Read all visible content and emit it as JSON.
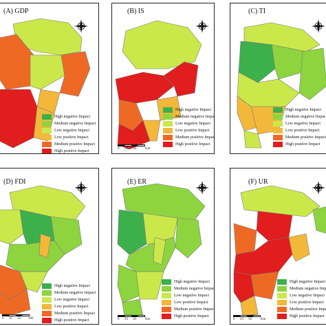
{
  "panels": [
    {
      "title": "(A) GDP",
      "legend": [
        "High negative Impact",
        "Medium negative Impact",
        "Low negative Impact",
        "Low positive Impact",
        "Medium positive Impact",
        "High positive Impact"
      ]
    },
    {
      "title": "(B) IS",
      "legend": [
        "High negative Impact",
        "Medium negative Impact",
        "Low negative Impact",
        "Low positive Impact",
        "Medium positive Impact",
        "High positive Impact"
      ],
      "scale": [
        "0",
        "25",
        "50",
        "Km"
      ]
    },
    {
      "title": "(C) TI",
      "legend": [
        "High negative Impact",
        "Medium negative Impact",
        "Low negative Impact",
        "Low positive Impact",
        "Medium positive Impact",
        "High positive Impact"
      ]
    },
    {
      "title": "(D) FDI",
      "legend": [
        "High negative Impact",
        "Medium negative Impact",
        "Low negative Impact",
        "Low positive Impact",
        "Medium positive Impact",
        "High positive Impact"
      ],
      "scale": [
        "0",
        "25",
        "50",
        "100"
      ]
    },
    {
      "title": "(E) ER",
      "legend": [
        "High negative Impact",
        "Medium negative Impact",
        "Low negative Impact",
        "Low positive Impact",
        "Medium positive Impact",
        "High positive Impact"
      ],
      "scale": [
        "0",
        "25",
        "50",
        "Km"
      ]
    },
    {
      "title": "(F) UR",
      "legend": [
        "High negative Impact",
        "Medium negative Impact",
        "Low negative Impact",
        "Low positive Impact",
        "Medium positive Impact",
        "High positive Impact"
      ],
      "scale": [
        "0",
        "25",
        "50",
        "Km"
      ]
    }
  ],
  "colors": {
    "high_negative": "#3cb04a",
    "medium_negative": "#8dd43e",
    "low_negative": "#cbe84a",
    "low_positive": "#f3b83a",
    "medium_positive": "#ee6a24",
    "high_positive": "#e11d1d"
  },
  "icons": {
    "compass": "north-arrow-compass-icon"
  }
}
